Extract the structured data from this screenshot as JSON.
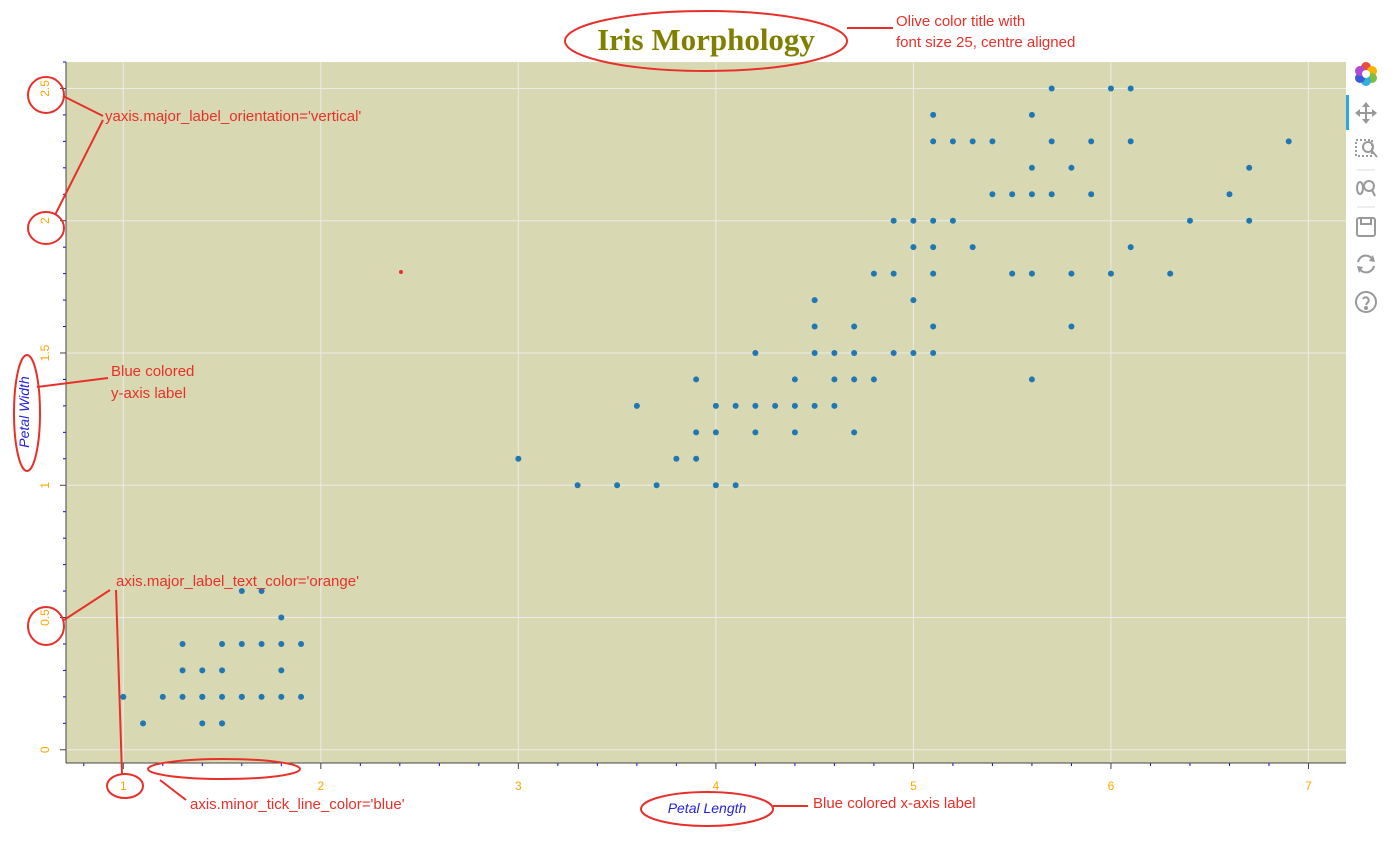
{
  "chart_data": {
    "type": "scatter",
    "title": "Iris Morphology",
    "xlabel": "Petal Length",
    "ylabel": "Petal Width",
    "xlim": [
      0.71,
      7.19
    ],
    "ylim": [
      -0.05,
      2.6
    ],
    "xticks": [
      "1",
      "2",
      "3",
      "4",
      "5",
      "6",
      "7"
    ],
    "yticks": [
      "0",
      "0.5",
      "1",
      "1.5",
      "2",
      "2.5"
    ],
    "grid": true,
    "series": [
      {
        "points": [
          [
            1.0,
            0.2
          ],
          [
            1.1,
            0.1
          ],
          [
            1.2,
            0.2
          ],
          [
            1.3,
            0.2
          ],
          [
            1.3,
            0.3
          ],
          [
            1.3,
            0.4
          ],
          [
            1.4,
            0.1
          ],
          [
            1.4,
            0.2
          ],
          [
            1.4,
            0.3
          ],
          [
            1.5,
            0.1
          ],
          [
            1.5,
            0.2
          ],
          [
            1.5,
            0.4
          ],
          [
            1.5,
            0.3
          ],
          [
            1.6,
            0.2
          ],
          [
            1.6,
            0.4
          ],
          [
            1.7,
            0.2
          ],
          [
            1.7,
            0.4
          ],
          [
            1.7,
            0.6
          ],
          [
            1.6,
            0.6
          ],
          [
            1.8,
            0.2
          ],
          [
            1.8,
            0.3
          ],
          [
            1.8,
            0.4
          ],
          [
            1.8,
            0.5
          ],
          [
            1.9,
            0.2
          ],
          [
            1.9,
            0.4
          ],
          [
            1.5,
            0.1
          ],
          [
            1.4,
            0.2
          ],
          [
            1.6,
            0.2
          ],
          [
            3.0,
            1.1
          ],
          [
            3.3,
            1.0
          ],
          [
            3.5,
            1.0
          ],
          [
            3.6,
            1.3
          ],
          [
            3.7,
            1.0
          ],
          [
            3.8,
            1.1
          ],
          [
            3.9,
            1.1
          ],
          [
            3.9,
            1.2
          ],
          [
            3.9,
            1.4
          ],
          [
            4.0,
            1.0
          ],
          [
            4.0,
            1.2
          ],
          [
            4.0,
            1.3
          ],
          [
            4.1,
            1.0
          ],
          [
            4.1,
            1.3
          ],
          [
            4.2,
            1.2
          ],
          [
            4.2,
            1.3
          ],
          [
            4.2,
            1.5
          ],
          [
            4.3,
            1.3
          ],
          [
            4.4,
            1.2
          ],
          [
            4.4,
            1.3
          ],
          [
            4.4,
            1.4
          ],
          [
            4.5,
            1.3
          ],
          [
            4.5,
            1.5
          ],
          [
            4.5,
            1.6
          ],
          [
            4.5,
            1.7
          ],
          [
            4.6,
            1.3
          ],
          [
            4.6,
            1.4
          ],
          [
            4.6,
            1.5
          ],
          [
            4.7,
            1.2
          ],
          [
            4.7,
            1.4
          ],
          [
            4.7,
            1.5
          ],
          [
            4.7,
            1.6
          ],
          [
            4.8,
            1.4
          ],
          [
            4.8,
            1.8
          ],
          [
            4.9,
            1.5
          ],
          [
            4.9,
            1.8
          ],
          [
            4.9,
            2.0
          ],
          [
            5.0,
            1.5
          ],
          [
            5.0,
            1.7
          ],
          [
            5.0,
            1.9
          ],
          [
            5.0,
            2.0
          ],
          [
            5.1,
            1.5
          ],
          [
            5.1,
            1.6
          ],
          [
            5.1,
            1.8
          ],
          [
            5.1,
            1.9
          ],
          [
            5.1,
            2.0
          ],
          [
            5.1,
            2.3
          ],
          [
            5.1,
            2.4
          ],
          [
            5.2,
            2.0
          ],
          [
            5.2,
            2.3
          ],
          [
            5.3,
            1.9
          ],
          [
            5.3,
            2.3
          ],
          [
            5.4,
            2.1
          ],
          [
            5.4,
            2.3
          ],
          [
            5.5,
            1.8
          ],
          [
            5.5,
            2.1
          ],
          [
            5.6,
            1.4
          ],
          [
            5.6,
            1.8
          ],
          [
            5.6,
            2.1
          ],
          [
            5.6,
            2.2
          ],
          [
            5.6,
            2.4
          ],
          [
            5.7,
            2.1
          ],
          [
            5.7,
            2.3
          ],
          [
            5.7,
            2.5
          ],
          [
            5.8,
            1.6
          ],
          [
            5.8,
            1.8
          ],
          [
            5.8,
            2.2
          ],
          [
            5.9,
            2.1
          ],
          [
            5.9,
            2.3
          ],
          [
            6.0,
            1.8
          ],
          [
            6.0,
            2.5
          ],
          [
            6.1,
            1.9
          ],
          [
            6.1,
            2.3
          ],
          [
            6.1,
            2.5
          ],
          [
            6.3,
            1.8
          ],
          [
            6.4,
            2.0
          ],
          [
            6.6,
            2.1
          ],
          [
            6.7,
            2.0
          ],
          [
            6.7,
            2.2
          ],
          [
            6.9,
            2.3
          ]
        ]
      }
    ]
  },
  "annotations": {
    "title_note_line1": "Olive color title with",
    "title_note_line2": "font size 25, centre aligned",
    "yaxis_orientation_note": "yaxis.major_label_orientation='vertical'",
    "ylabel_note_line1": "Blue colored",
    "ylabel_note_line2": "y-axis label",
    "tick_color_note": "axis.major_label_text_color='orange'",
    "minor_tick_note": "axis.minor_tick_line_color='blue'",
    "xlabel_note": "Blue colored x-axis label"
  },
  "toolbar": {
    "items": [
      "bokeh-logo-icon",
      "pan-icon",
      "box-zoom-icon",
      "wheel-zoom-icon",
      "save-icon",
      "reset-icon",
      "help-icon"
    ]
  },
  "colors": {
    "title": "#808000",
    "background": "#d8d9b2",
    "point": "#1f77b4",
    "tick_label": "#ffa500",
    "axis_label": "#2323d8",
    "minor_tick": "#0000ff",
    "annotation": "#e8302a"
  }
}
